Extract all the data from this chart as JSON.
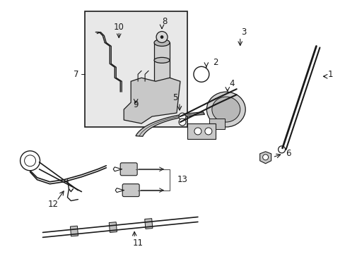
{
  "fig_width": 4.89,
  "fig_height": 3.6,
  "dpi": 100,
  "bg": "#ffffff",
  "lc": "#1a1a1a",
  "fc_box": "#e0e0e0",
  "fc_white": "#ffffff",
  "lw": 1.0,
  "fs": 8.5
}
